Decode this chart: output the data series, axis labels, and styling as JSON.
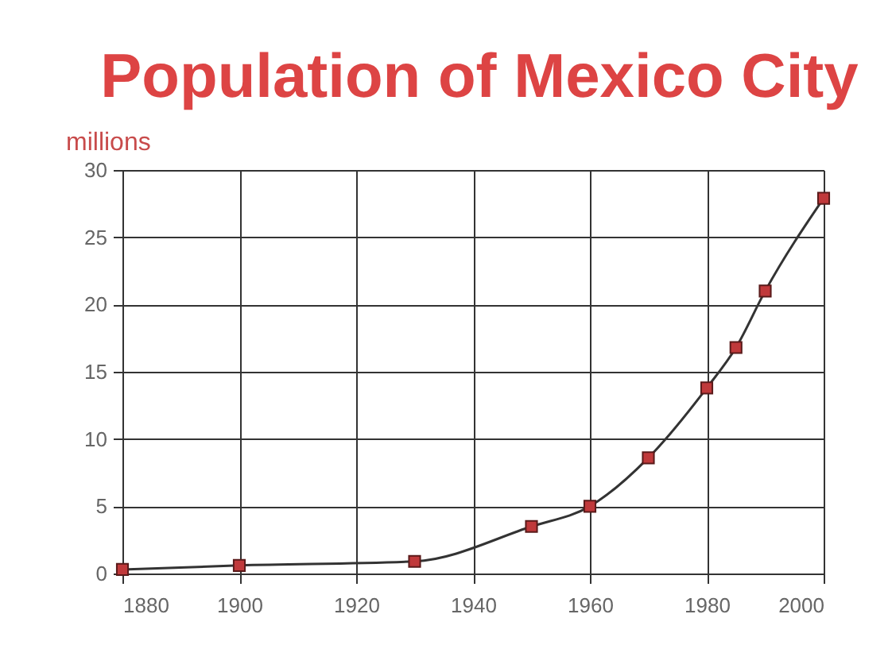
{
  "chart_data": {
    "type": "line",
    "title": "Population of Mexico City",
    "ylabel": "millions",
    "x": [
      1880,
      1900,
      1930,
      1950,
      1960,
      1970,
      1980,
      1985,
      1990,
      2000
    ],
    "series": [
      {
        "color": "#333333",
        "colors": [
          "#c0393b",
          "#c0393b",
          "#c0393b",
          "#c0393b",
          "#c0393b",
          "#c0393b",
          "#c0393b",
          "#c0393b",
          "#c0393b",
          "#c0393b"
        ],
        "values": [
          0.3,
          0.6,
          0.9,
          3.5,
          5.0,
          8.6,
          13.8,
          16.8,
          21.0,
          27.9
        ]
      }
    ],
    "xlim": [
      1880,
      2000
    ],
    "xticks": [
      1880,
      1900,
      1920,
      1940,
      1960,
      1980,
      2000
    ],
    "ylim": [
      0,
      30
    ],
    "yticks": [
      0,
      5,
      10,
      15,
      20,
      25,
      30
    ],
    "grid": true,
    "marker": "square",
    "line_style": "solid"
  }
}
